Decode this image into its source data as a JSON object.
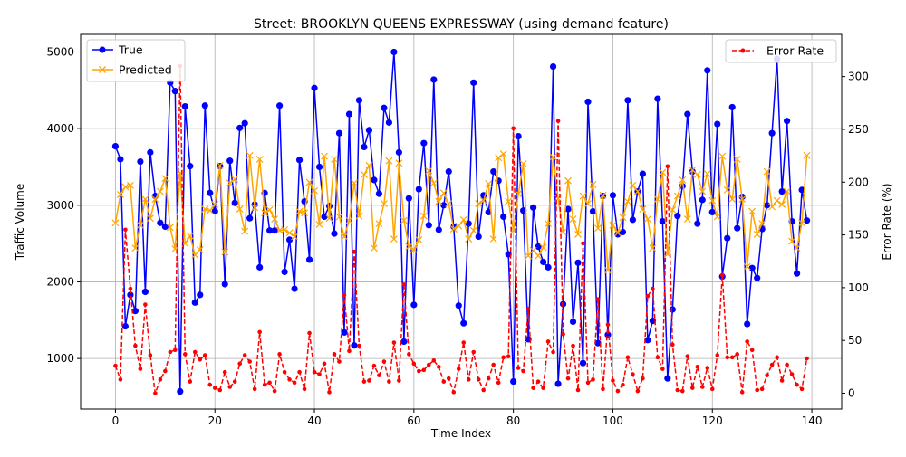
{
  "chart_data": {
    "type": "line",
    "title": "Street: BROOKLYN QUEENS EXPRESSWAY (using demand feature)",
    "xlabel": "Time Index",
    "ylabel": "Traffic Volume",
    "y2label": "Error Rate (%)",
    "xlim": [
      -7,
      146
    ],
    "ylim": [
      340,
      5230
    ],
    "y2lim": [
      -15,
      340
    ],
    "xticks": [
      "0",
      "20",
      "40",
      "60",
      "80",
      "100",
      "120",
      "140"
    ],
    "xtick_values": [
      0,
      20,
      40,
      60,
      80,
      100,
      120,
      140
    ],
    "yticks": [
      "1000",
      "2000",
      "3000",
      "4000",
      "5000"
    ],
    "ytick_values": [
      1000,
      2000,
      3000,
      4000,
      5000
    ],
    "y2ticks": [
      "0",
      "50",
      "100",
      "150",
      "200",
      "250",
      "300"
    ],
    "y2tick_values": [
      0,
      50,
      100,
      150,
      200,
      250,
      300
    ],
    "grid": true,
    "legend_left_placement": "top-left",
    "legend_right_placement": "top-right",
    "x": [
      0,
      1,
      2,
      3,
      4,
      5,
      6,
      7,
      8,
      9,
      10,
      11,
      12,
      13,
      14,
      15,
      16,
      17,
      18,
      19,
      20,
      21,
      22,
      23,
      24,
      25,
      26,
      27,
      28,
      29,
      30,
      31,
      32,
      33,
      34,
      35,
      36,
      37,
      38,
      39,
      40,
      41,
      42,
      43,
      44,
      45,
      46,
      47,
      48,
      49,
      50,
      51,
      52,
      53,
      54,
      55,
      56,
      57,
      58,
      59,
      60,
      61,
      62,
      63,
      64,
      65,
      66,
      67,
      68,
      69,
      70,
      71,
      72,
      73,
      74,
      75,
      76,
      77,
      78,
      79,
      80,
      81,
      82,
      83,
      84,
      85,
      86,
      87,
      88,
      89,
      90,
      91,
      92,
      93,
      94,
      95,
      96,
      97,
      98,
      99,
      100,
      101,
      102,
      103,
      104,
      105,
      106,
      107,
      108,
      109,
      110,
      111,
      112,
      113,
      114,
      115,
      116,
      117,
      118,
      119,
      120,
      121,
      122,
      123,
      124,
      125,
      126,
      127,
      128,
      129,
      130,
      131,
      132,
      133,
      134,
      135,
      136,
      137,
      138,
      139
    ],
    "series": [
      {
        "name": "True",
        "axis": "left",
        "color": "#0000ff",
        "marker": "circle",
        "values": [
          3770,
          3600,
          1420,
          1830,
          1620,
          3570,
          1870,
          3690,
          3120,
          2770,
          2720,
          4600,
          4490,
          570,
          4290,
          3510,
          1730,
          1830,
          4300,
          3160,
          2920,
          3510,
          1970,
          3580,
          3030,
          4010,
          4070,
          2830,
          3010,
          2190,
          3160,
          2670,
          2670,
          4300,
          2130,
          2550,
          1910,
          3590,
          3050,
          2290,
          4530,
          3500,
          2850,
          2990,
          2630,
          3940,
          1340,
          4190,
          1170,
          4370,
          3760,
          3980,
          3330,
          3150,
          4270,
          4080,
          5000,
          3690,
          1220,
          3090,
          1700,
          3210,
          3810,
          2740,
          4640,
          2680,
          3000,
          3440,
          2720,
          1690,
          1460,
          2760,
          4600,
          2590,
          3130,
          2910,
          3440,
          3320,
          2850,
          2360,
          700,
          3900,
          2930,
          1250,
          2970,
          2460,
          2260,
          2190,
          4810,
          670,
          1710,
          2950,
          1480,
          2250,
          940,
          4350,
          2920,
          1200,
          3120,
          1310,
          3130,
          2620,
          2650,
          4370,
          2810,
          3180,
          3410,
          1240,
          1490,
          4390,
          2790,
          740,
          1640,
          2860,
          3250,
          4190,
          3440,
          2760,
          3070,
          4760,
          2910,
          4060,
          2070,
          2570,
          4280,
          2700,
          3110,
          1450,
          2180,
          2050,
          2690,
          3000,
          3940,
          4910,
          3180,
          4100,
          2790,
          2110,
          3200,
          2800
        ]
      },
      {
        "name": "Predicted",
        "axis": "left",
        "color": "#ffa500",
        "marker": "x",
        "values": [
          2770,
          3140,
          3240,
          3260,
          2440,
          2740,
          3080,
          2830,
          3080,
          3180,
          3350,
          2710,
          2430,
          3420,
          2500,
          2600,
          2350,
          2420,
          2950,
          2930,
          3010,
          3520,
          2390,
          3290,
          3340,
          2950,
          2660,
          3650,
          2970,
          3600,
          2900,
          2940,
          2820,
          2670,
          2680,
          2640,
          2590,
          2920,
          2900,
          3300,
          3190,
          2750,
          3640,
          2830,
          3600,
          2850,
          2590,
          2800,
          3290,
          2860,
          3400,
          3520,
          2440,
          2760,
          3020,
          3580,
          2560,
          3550,
          2800,
          2460,
          2420,
          2550,
          2860,
          3450,
          3290,
          3050,
          3160,
          3020,
          2690,
          2730,
          2810,
          2560,
          2670,
          3020,
          3060,
          3280,
          2560,
          3620,
          3670,
          3050,
          2670,
          3150,
          3540,
          2340,
          2410,
          2340,
          2450,
          2760,
          3630,
          3090,
          2650,
          3320,
          2820,
          2620,
          3120,
          3020,
          3270,
          2700,
          3130,
          2150,
          2740,
          2640,
          2840,
          3050,
          3260,
          3180,
          2950,
          2820,
          2440,
          3080,
          3430,
          2360,
          2940,
          3120,
          3330,
          2820,
          3460,
          3400,
          3180,
          3410,
          3060,
          2850,
          3640,
          3200,
          3080,
          3600,
          3080,
          2200,
          2920,
          2620,
          2760,
          3440,
          2980,
          3060,
          3010,
          3180,
          2530,
          2440,
          2770,
          3650
        ]
      },
      {
        "name": "Error Rate",
        "axis": "right",
        "color": "#ff0000",
        "marker": "dot",
        "dashed": true,
        "values": [
          26,
          13,
          155,
          99,
          45,
          23,
          84,
          36,
          0,
          13,
          21,
          39,
          41,
          310,
          37,
          11,
          39,
          32,
          36,
          8,
          5,
          3,
          20,
          6,
          11,
          28,
          36,
          30,
          4,
          58,
          8,
          10,
          2,
          37,
          20,
          13,
          10,
          20,
          4,
          57,
          20,
          18,
          28,
          1,
          37,
          30,
          93,
          40,
          134,
          45,
          11,
          12,
          26,
          17,
          30,
          11,
          48,
          12,
          103,
          37,
          28,
          21,
          22,
          27,
          31,
          25,
          11,
          14,
          1,
          23,
          48,
          13,
          39,
          13,
          3,
          14,
          27,
          10,
          34,
          35,
          251,
          24,
          21,
          80,
          5,
          11,
          5,
          49,
          39,
          258,
          56,
          14,
          45,
          3,
          142,
          10,
          13,
          89,
          4,
          65,
          12,
          2,
          8,
          34,
          18,
          2,
          14,
          92,
          99,
          34,
          23,
          215,
          46,
          3,
          2,
          35,
          5,
          25,
          6,
          24,
          4,
          36,
          112,
          34,
          34,
          37,
          1,
          49,
          41,
          3,
          4,
          17,
          27,
          34,
          12,
          27,
          18,
          8,
          4,
          33
        ]
      }
    ]
  }
}
